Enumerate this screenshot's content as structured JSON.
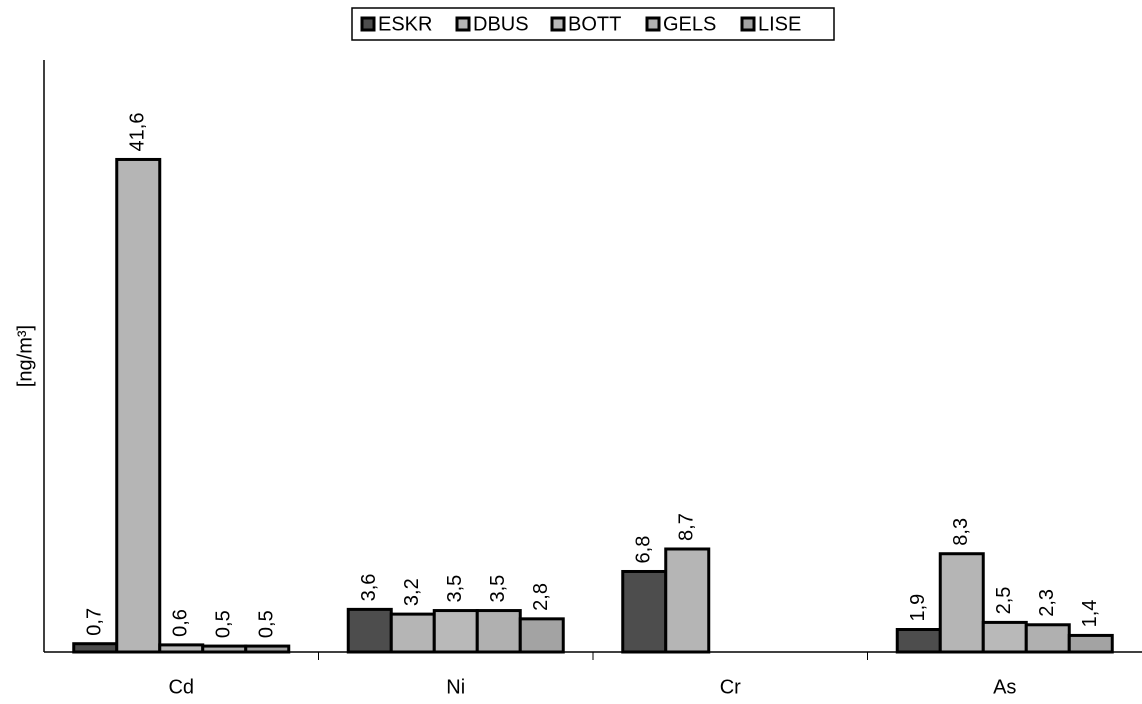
{
  "chart_data": {
    "type": "bar",
    "y_label": "[ng/m³]",
    "categories": [
      "Cd",
      "Ni",
      "Cr",
      "As"
    ],
    "series": [
      {
        "name": "ESKR",
        "color": "#4d4d4d",
        "values": [
          0.7,
          3.6,
          6.8,
          1.9
        ],
        "value_labels": [
          "0,7",
          "3,6",
          "6,8",
          "1,9"
        ]
      },
      {
        "name": "DBUS",
        "color": "#b5b5b5",
        "values": [
          41.6,
          3.2,
          8.7,
          8.3
        ],
        "value_labels": [
          "41,6",
          "3,2",
          "8,7",
          "8,3"
        ]
      },
      {
        "name": "BOTT",
        "color": "#b9b9b9",
        "values": [
          0.6,
          3.5,
          null,
          2.5
        ],
        "value_labels": [
          "0,6",
          "3,5",
          null,
          "2,5"
        ]
      },
      {
        "name": "GELS",
        "color": "#b0b0b0",
        "values": [
          0.5,
          3.5,
          null,
          2.3
        ],
        "value_labels": [
          "0,5",
          "3,5",
          null,
          "2,3"
        ]
      },
      {
        "name": "LISE",
        "color": "#a3a3a3",
        "values": [
          0.5,
          2.8,
          null,
          1.4
        ],
        "value_labels": [
          "0,5",
          "2,8",
          null,
          "1,4"
        ]
      }
    ],
    "ylim": [
      0,
      50
    ],
    "legend": "top"
  }
}
